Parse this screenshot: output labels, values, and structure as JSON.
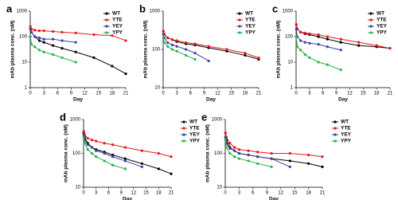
{
  "chart_data": [
    {
      "type": "line",
      "label": "a",
      "xlabel": "Day",
      "ylabel": "mAb plasma conc. (nM)",
      "log_y": true,
      "legend": "upper right",
      "x": [
        0.04,
        0.25,
        1,
        2,
        3,
        5,
        7,
        10,
        14,
        18,
        21
      ],
      "xlim": [
        0,
        21
      ],
      "xticks": [
        0,
        3,
        6,
        9,
        12,
        15,
        18,
        21
      ],
      "ylim": [
        1,
        1000
      ],
      "yticks": [
        1,
        10,
        100,
        1000
      ],
      "series": [
        {
          "name": "WT",
          "color": "#000000",
          "values": [
            200,
            150,
            100,
            70,
            60,
            45,
            35,
            25,
            15,
            7,
            3.5
          ]
        },
        {
          "name": "YTE",
          "color": "#e8191d",
          "values": [
            250,
            200,
            180,
            170,
            170,
            160,
            150,
            140,
            120,
            110,
            70
          ]
        },
        {
          "name": "YEY",
          "color": "#3b3fa6",
          "values": [
            200,
            150,
            100,
            90,
            80,
            80,
            70,
            60,
            null,
            null,
            null
          ]
        },
        {
          "name": "YPY",
          "color": "#2db34a",
          "values": [
            100,
            50,
            40,
            30,
            25,
            20,
            15,
            10,
            null,
            null,
            null
          ]
        }
      ]
    },
    {
      "type": "line",
      "label": "b",
      "xlabel": "Day",
      "ylabel": "mAb plasma conc. (nM)",
      "log_y": true,
      "legend": "upper right",
      "x": [
        0.04,
        0.25,
        1,
        2,
        3,
        5,
        7,
        10,
        14,
        18,
        21
      ],
      "xlim": [
        0,
        21
      ],
      "xticks": [
        0,
        3,
        6,
        9,
        12,
        15,
        18,
        21
      ],
      "ylim": [
        10,
        1000
      ],
      "yticks": [
        10,
        100,
        1000
      ],
      "series": [
        {
          "name": "WT",
          "color": "#000000",
          "values": [
            300,
            250,
            200,
            180,
            160,
            140,
            130,
            110,
            90,
            70,
            55
          ]
        },
        {
          "name": "YTE",
          "color": "#e8191d",
          "values": [
            300,
            250,
            200,
            180,
            170,
            150,
            140,
            120,
            100,
            80,
            60
          ]
        },
        {
          "name": "YEY",
          "color": "#3b3fa6",
          "values": [
            250,
            200,
            150,
            130,
            120,
            100,
            80,
            50,
            null,
            null,
            null
          ]
        },
        {
          "name": "YPY",
          "color": "#2db34a",
          "values": [
            200,
            150,
            120,
            100,
            90,
            70,
            55,
            null,
            null,
            null,
            null
          ]
        }
      ]
    },
    {
      "type": "line",
      "label": "c",
      "xlabel": "Day",
      "ylabel": "mAb plasma conc. (nM)",
      "log_y": true,
      "legend": "upper right",
      "x": [
        0.04,
        0.25,
        1,
        2,
        3,
        5,
        7,
        10,
        14,
        18,
        21
      ],
      "xlim": [
        0,
        21
      ],
      "xticks": [
        0,
        3,
        6,
        9,
        12,
        15,
        18,
        21
      ],
      "ylim": [
        1,
        1000
      ],
      "yticks": [
        1,
        10,
        100,
        1000
      ],
      "series": [
        {
          "name": "WT",
          "color": "#000000",
          "values": [
            300,
            200,
            150,
            130,
            120,
            100,
            80,
            60,
            45,
            40,
            35
          ]
        },
        {
          "name": "YTE",
          "color": "#e8191d",
          "values": [
            300,
            200,
            150,
            140,
            130,
            120,
            100,
            80,
            60,
            45,
            35
          ]
        },
        {
          "name": "YEY",
          "color": "#3b3fa6",
          "values": [
            200,
            100,
            70,
            60,
            55,
            50,
            40,
            30,
            null,
            null,
            null
          ]
        },
        {
          "name": "YPY",
          "color": "#2db34a",
          "values": [
            100,
            40,
            30,
            20,
            15,
            10,
            8,
            5,
            null,
            null,
            null
          ]
        }
      ]
    },
    {
      "type": "line",
      "label": "d",
      "xlabel": "Day",
      "ylabel": "mAb plasma conc. (nM)",
      "log_y": true,
      "legend": "outside right",
      "x": [
        0.04,
        0.25,
        1,
        2,
        3,
        5,
        7,
        10,
        14,
        18,
        21
      ],
      "xlim": [
        0,
        21
      ],
      "xticks": [
        0,
        3,
        6,
        9,
        12,
        15,
        18,
        21
      ],
      "ylim": [
        10,
        1000
      ],
      "yticks": [
        10,
        100,
        1000
      ],
      "series": [
        {
          "name": "WT",
          "color": "#000000",
          "values": [
            400,
            300,
            200,
            150,
            130,
            110,
            90,
            70,
            50,
            35,
            25
          ]
        },
        {
          "name": "YTE",
          "color": "#e8191d",
          "values": [
            450,
            350,
            280,
            250,
            230,
            200,
            180,
            150,
            120,
            100,
            80
          ]
        },
        {
          "name": "YEY",
          "color": "#3b3fa6",
          "values": [
            350,
            250,
            180,
            150,
            120,
            100,
            80,
            60,
            40,
            null,
            null
          ]
        },
        {
          "name": "YPY",
          "color": "#2db34a",
          "values": [
            300,
            200,
            130,
            100,
            80,
            60,
            45,
            35,
            null,
            null,
            null
          ]
        }
      ]
    },
    {
      "type": "line",
      "label": "e",
      "xlabel": "Day",
      "ylabel": "mAb plasma conc. (nM)",
      "log_y": true,
      "legend": "outside right",
      "x": [
        0.04,
        0.25,
        1,
        2,
        3,
        5,
        7,
        10,
        14,
        18,
        21
      ],
      "xlim": [
        0,
        21
      ],
      "xticks": [
        0,
        3,
        6,
        9,
        12,
        15,
        18,
        21
      ],
      "ylim": [
        10,
        1000
      ],
      "yticks": [
        10,
        100,
        1000
      ],
      "series": [
        {
          "name": "WT",
          "color": "#000000",
          "values": [
            400,
            250,
            150,
            120,
            100,
            90,
            80,
            70,
            60,
            50,
            40
          ]
        },
        {
          "name": "YTE",
          "color": "#e8191d",
          "values": [
            400,
            300,
            200,
            150,
            130,
            120,
            110,
            100,
            100,
            90,
            80
          ]
        },
        {
          "name": "YEY",
          "color": "#3b3fa6",
          "values": [
            300,
            200,
            140,
            120,
            100,
            90,
            80,
            70,
            40,
            null,
            null
          ]
        },
        {
          "name": "YPY",
          "color": "#2db34a",
          "values": [
            250,
            150,
            100,
            80,
            70,
            60,
            50,
            40,
            null,
            null,
            null
          ]
        }
      ]
    }
  ]
}
